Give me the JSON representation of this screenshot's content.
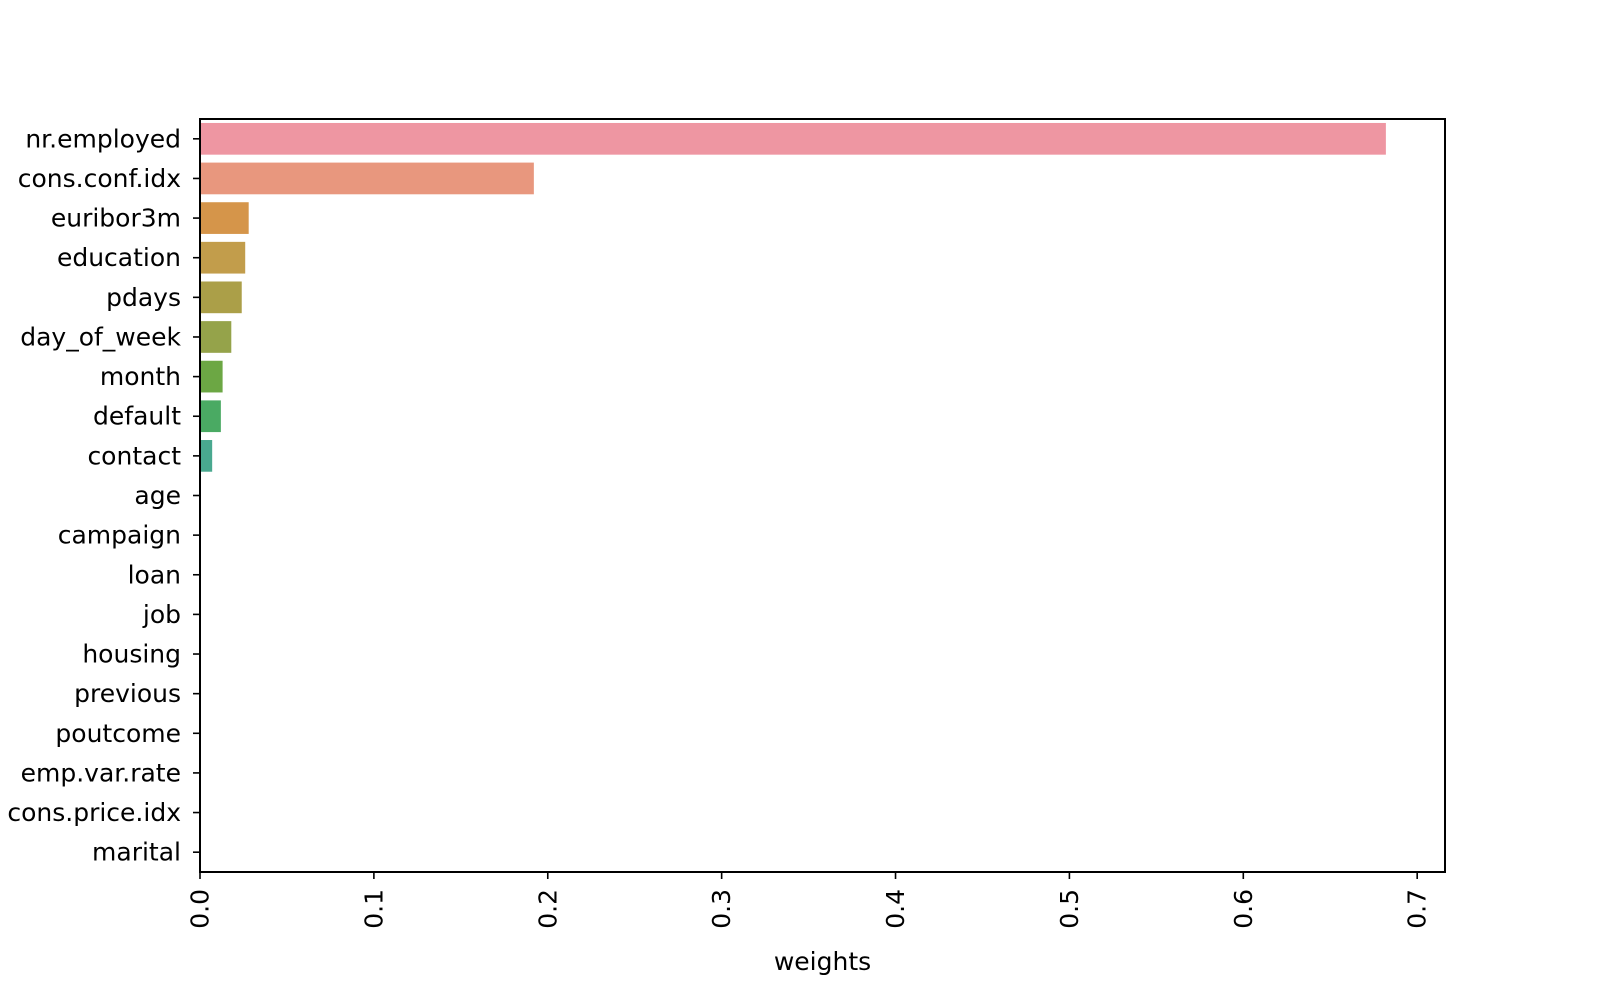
{
  "chart_data": {
    "type": "bar",
    "orientation": "horizontal",
    "title": "",
    "xlabel": "weights",
    "ylabel": "",
    "xlim": [
      0,
      0.716
    ],
    "x_ticks": [
      0.0,
      0.1,
      0.2,
      0.3,
      0.4,
      0.5,
      0.6,
      0.7
    ],
    "x_tick_labels": [
      "0.0",
      "0.1",
      "0.2",
      "0.3",
      "0.4",
      "0.5",
      "0.6",
      "0.7"
    ],
    "grid": false,
    "legend": "none",
    "categories": [
      "nr.employed",
      "cons.conf.idx",
      "euribor3m",
      "education",
      "pdays",
      "day_of_week",
      "month",
      "default",
      "contact",
      "age",
      "campaign",
      "loan",
      "job",
      "housing",
      "previous",
      "poutcome",
      "emp.var.rate",
      "cons.price.idx",
      "marital"
    ],
    "values": [
      0.682,
      0.192,
      0.028,
      0.026,
      0.024,
      0.018,
      0.013,
      0.012,
      0.007,
      0,
      0,
      0,
      0,
      0,
      0,
      0,
      0,
      0,
      0
    ],
    "colors": [
      "#ee96a2",
      "#e8977e",
      "#d5954a",
      "#c29d4b",
      "#ab9f48",
      "#95a34a",
      "#6ca744",
      "#4aaa63",
      "#49a88f",
      "#45a6a6",
      "#48a4b5",
      "#4aa3c2",
      "#5da2d4",
      "#8aa0e0",
      "#a99be5",
      "#c892e2",
      "#de8ed8",
      "#ea8fc4",
      "#ee93b2"
    ]
  }
}
